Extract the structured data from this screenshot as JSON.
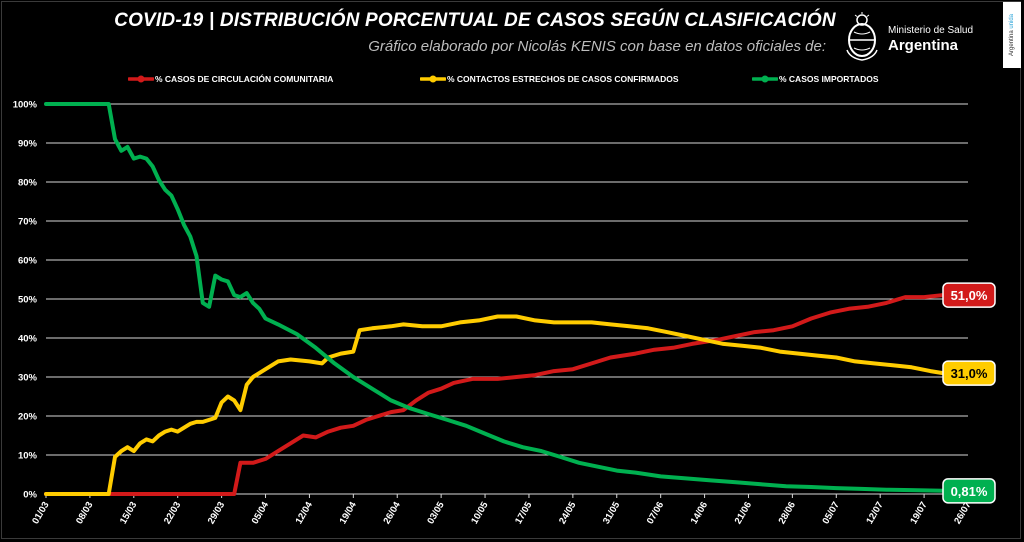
{
  "header": {
    "title": "COVID-19  |  DISTRIBUCIÓN PORCENTUAL DE CASOS SEGÚN CLASIFICACIÓN",
    "subtitle": "Gráfico elaborado por Nicolás KENIS con base en datos oficiales de:",
    "logo_line1": "Ministerio de Salud",
    "logo_line2": "Argentina",
    "badge_text": "Argentina",
    "badge_accent": "unida",
    "seal_icon": "argentina-coat-of-arms-icon"
  },
  "chart_data": {
    "type": "line",
    "title": "COVID-19  |  DISTRIBUCIÓN PORCENTUAL DE CASOS SEGÚN CLASIFICACIÓN",
    "xlabel": "",
    "ylabel": "",
    "ylim": [
      0,
      100
    ],
    "y_ticks": [
      "0%",
      "10%",
      "20%",
      "30%",
      "40%",
      "50%",
      "60%",
      "70%",
      "80%",
      "90%",
      "100%"
    ],
    "x_range": [
      "01/03",
      "26/07"
    ],
    "x_tick_labels": [
      "01/03",
      "08/03",
      "15/03",
      "22/03",
      "29/03",
      "05/04",
      "12/04",
      "19/04",
      "26/04",
      "03/05",
      "10/05",
      "17/05",
      "24/05",
      "31/05",
      "07/06",
      "14/06",
      "21/06",
      "28/06",
      "05/07",
      "12/07",
      "19/07",
      "26/07"
    ],
    "grid": true,
    "legend_position": "top",
    "end_date": "22/07",
    "series": [
      {
        "name": "% CASOS DE CIRCULACIÓN COMUNITARIA",
        "color": "#d21a1a",
        "end_label": "51,0%",
        "points": [
          [
            "01/03",
            0
          ],
          [
            "30/03",
            0
          ],
          [
            "31/03",
            0
          ],
          [
            "01/04",
            8
          ],
          [
            "02/04",
            8
          ],
          [
            "03/04",
            8
          ],
          [
            "05/04",
            9
          ],
          [
            "07/04",
            11
          ],
          [
            "09/04",
            13
          ],
          [
            "11/04",
            15
          ],
          [
            "13/04",
            14.5
          ],
          [
            "15/04",
            16
          ],
          [
            "17/04",
            17
          ],
          [
            "19/04",
            17.5
          ],
          [
            "21/04",
            19
          ],
          [
            "23/04",
            20
          ],
          [
            "25/04",
            21
          ],
          [
            "27/04",
            21.5
          ],
          [
            "29/04",
            24
          ],
          [
            "01/05",
            26
          ],
          [
            "03/05",
            27
          ],
          [
            "05/05",
            28.5
          ],
          [
            "08/05",
            29.5
          ],
          [
            "12/05",
            29.5
          ],
          [
            "15/05",
            30
          ],
          [
            "18/05",
            30.5
          ],
          [
            "21/05",
            31.5
          ],
          [
            "24/05",
            32
          ],
          [
            "27/05",
            33.5
          ],
          [
            "30/05",
            35
          ],
          [
            "03/06",
            36
          ],
          [
            "06/06",
            37
          ],
          [
            "09/06",
            37.5
          ],
          [
            "12/06",
            38.5
          ],
          [
            "16/06",
            39.5
          ],
          [
            "19/06",
            40.5
          ],
          [
            "22/06",
            41.5
          ],
          [
            "25/06",
            42
          ],
          [
            "28/06",
            43
          ],
          [
            "01/07",
            45
          ],
          [
            "04/07",
            46.5
          ],
          [
            "07/07",
            47.5
          ],
          [
            "10/07",
            48
          ],
          [
            "13/07",
            49
          ],
          [
            "16/07",
            50.5
          ],
          [
            "19/07",
            50.5
          ],
          [
            "22/07",
            51
          ]
        ]
      },
      {
        "name": "% CONTACTOS ESTRECHOS DE CASOS CONFIRMADOS",
        "color": "#ffcc00",
        "end_label": "31,0%",
        "points": [
          [
            "01/03",
            0
          ],
          [
            "10/03",
            0
          ],
          [
            "11/03",
            0
          ],
          [
            "12/03",
            9.5
          ],
          [
            "13/03",
            11
          ],
          [
            "14/03",
            12
          ],
          [
            "15/03",
            11
          ],
          [
            "16/03",
            13
          ],
          [
            "17/03",
            14
          ],
          [
            "18/03",
            13.5
          ],
          [
            "19/03",
            15
          ],
          [
            "20/03",
            16
          ],
          [
            "21/03",
            16.5
          ],
          [
            "22/03",
            16
          ],
          [
            "23/03",
            17
          ],
          [
            "24/03",
            18
          ],
          [
            "25/03",
            18.5
          ],
          [
            "26/03",
            18.5
          ],
          [
            "27/03",
            19
          ],
          [
            "28/03",
            19.5
          ],
          [
            "29/03",
            23.5
          ],
          [
            "30/03",
            25
          ],
          [
            "31/03",
            24
          ],
          [
            "01/04",
            21.5
          ],
          [
            "02/04",
            28
          ],
          [
            "03/04",
            30
          ],
          [
            "04/04",
            31
          ],
          [
            "05/04",
            32
          ],
          [
            "07/04",
            34
          ],
          [
            "09/04",
            34.5
          ],
          [
            "12/04",
            34
          ],
          [
            "14/04",
            33.5
          ],
          [
            "15/04",
            35
          ],
          [
            "17/04",
            36
          ],
          [
            "19/04",
            36.5
          ],
          [
            "20/04",
            42
          ],
          [
            "22/04",
            42.5
          ],
          [
            "25/04",
            43
          ],
          [
            "27/04",
            43.5
          ],
          [
            "30/04",
            43
          ],
          [
            "03/05",
            43
          ],
          [
            "06/05",
            44
          ],
          [
            "09/05",
            44.5
          ],
          [
            "12/05",
            45.5
          ],
          [
            "15/05",
            45.5
          ],
          [
            "18/05",
            44.5
          ],
          [
            "21/05",
            44
          ],
          [
            "24/05",
            44
          ],
          [
            "27/05",
            44
          ],
          [
            "30/05",
            43.5
          ],
          [
            "02/06",
            43
          ],
          [
            "05/06",
            42.5
          ],
          [
            "08/06",
            41.5
          ],
          [
            "11/06",
            40.5
          ],
          [
            "14/06",
            39.5
          ],
          [
            "17/06",
            38.5
          ],
          [
            "20/06",
            38
          ],
          [
            "23/06",
            37.5
          ],
          [
            "26/06",
            36.5
          ],
          [
            "29/06",
            36
          ],
          [
            "02/07",
            35.5
          ],
          [
            "05/07",
            35
          ],
          [
            "08/07",
            34
          ],
          [
            "11/07",
            33.5
          ],
          [
            "14/07",
            33
          ],
          [
            "17/07",
            32.5
          ],
          [
            "20/07",
            31.5
          ],
          [
            "22/07",
            31
          ]
        ]
      },
      {
        "name": "% CASOS IMPORTADOS",
        "color": "#00b050",
        "end_label": "0,81%",
        "points": [
          [
            "01/03",
            100
          ],
          [
            "11/03",
            100
          ],
          [
            "12/03",
            91
          ],
          [
            "13/03",
            88
          ],
          [
            "14/03",
            89
          ],
          [
            "15/03",
            86
          ],
          [
            "16/03",
            86.5
          ],
          [
            "17/03",
            86
          ],
          [
            "18/03",
            84
          ],
          [
            "19/03",
            80.5
          ],
          [
            "20/03",
            78
          ],
          [
            "21/03",
            76.5
          ],
          [
            "22/03",
            73
          ],
          [
            "23/03",
            69
          ],
          [
            "24/03",
            66
          ],
          [
            "25/03",
            61
          ],
          [
            "26/03",
            49
          ],
          [
            "27/03",
            48
          ],
          [
            "28/03",
            56
          ],
          [
            "29/03",
            55
          ],
          [
            "30/03",
            54.5
          ],
          [
            "31/03",
            51
          ],
          [
            "01/04",
            50.5
          ],
          [
            "02/04",
            51.5
          ],
          [
            "03/04",
            49
          ],
          [
            "04/04",
            47.5
          ],
          [
            "05/04",
            45
          ],
          [
            "07/04",
            43.5
          ],
          [
            "10/04",
            41
          ],
          [
            "13/04",
            37.5
          ],
          [
            "16/04",
            33.5
          ],
          [
            "19/04",
            30
          ],
          [
            "22/04",
            27
          ],
          [
            "25/04",
            24
          ],
          [
            "28/04",
            22
          ],
          [
            "01/05",
            20.5
          ],
          [
            "04/05",
            19
          ],
          [
            "07/05",
            17.5
          ],
          [
            "10/05",
            15.5
          ],
          [
            "13/05",
            13.5
          ],
          [
            "16/05",
            12
          ],
          [
            "19/05",
            11
          ],
          [
            "22/05",
            9.5
          ],
          [
            "25/05",
            8
          ],
          [
            "28/05",
            7
          ],
          [
            "31/05",
            6
          ],
          [
            "03/06",
            5.5
          ],
          [
            "07/06",
            4.5
          ],
          [
            "11/06",
            4
          ],
          [
            "15/06",
            3.5
          ],
          [
            "19/06",
            3
          ],
          [
            "23/06",
            2.5
          ],
          [
            "27/06",
            2
          ],
          [
            "01/07",
            1.8
          ],
          [
            "05/07",
            1.5
          ],
          [
            "09/07",
            1.3
          ],
          [
            "13/07",
            1.1
          ],
          [
            "17/07",
            1
          ],
          [
            "22/07",
            0.81
          ]
        ]
      }
    ]
  }
}
